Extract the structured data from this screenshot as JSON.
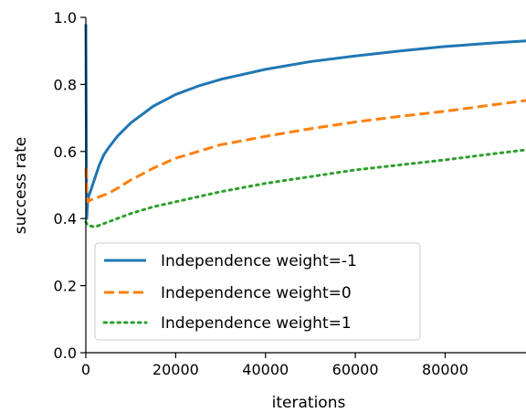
{
  "chart_data": {
    "type": "line",
    "title": "",
    "xlabel": "iterations",
    "ylabel": "success rate",
    "xlim": [
      0,
      98000
    ],
    "ylim": [
      0.0,
      1.0
    ],
    "xticks": [
      0,
      20000,
      40000,
      60000,
      80000
    ],
    "xtick_labels": [
      "0",
      "20000",
      "40000",
      "60000",
      "80000"
    ],
    "yticks": [
      0.0,
      0.2,
      0.4,
      0.6,
      0.8,
      1.0
    ],
    "ytick_labels": [
      "0.0",
      "0.2",
      "0.4",
      "0.6",
      "0.8",
      "1.0"
    ],
    "grid": false,
    "legend_position": "lower-left",
    "series": [
      {
        "name": "Independence weight=-1",
        "color": "#1f77b4",
        "style": "solid",
        "x": [
          0,
          200,
          400,
          700,
          1000,
          1500,
          2000,
          3000,
          4000,
          5000,
          7000,
          10000,
          15000,
          20000,
          25000,
          30000,
          40000,
          50000,
          60000,
          70000,
          80000,
          90000,
          98000
        ],
        "y": [
          0.98,
          0.4,
          0.45,
          0.47,
          0.48,
          0.5,
          0.52,
          0.56,
          0.59,
          0.61,
          0.645,
          0.685,
          0.735,
          0.77,
          0.795,
          0.815,
          0.845,
          0.868,
          0.885,
          0.9,
          0.913,
          0.923,
          0.93
        ]
      },
      {
        "name": "Independence weight=0",
        "color": "#ff7f0e",
        "style": "dashed",
        "x": [
          0,
          200,
          500,
          1000,
          2000,
          3000,
          5000,
          7000,
          10000,
          15000,
          20000,
          25000,
          30000,
          40000,
          50000,
          60000,
          70000,
          80000,
          90000,
          98000
        ],
        "y": [
          0.55,
          0.47,
          0.45,
          0.455,
          0.46,
          0.465,
          0.475,
          0.49,
          0.515,
          0.55,
          0.58,
          0.6,
          0.62,
          0.645,
          0.668,
          0.688,
          0.705,
          0.72,
          0.738,
          0.752
        ]
      },
      {
        "name": "Independence weight=1",
        "color": "#2ca02c",
        "style": "dotted",
        "x": [
          0,
          200,
          500,
          1000,
          2000,
          3000,
          5000,
          7000,
          10000,
          15000,
          20000,
          25000,
          30000,
          40000,
          50000,
          60000,
          70000,
          80000,
          90000,
          98000
        ],
        "y": [
          0.39,
          0.385,
          0.38,
          0.378,
          0.375,
          0.38,
          0.39,
          0.4,
          0.415,
          0.435,
          0.45,
          0.465,
          0.48,
          0.505,
          0.525,
          0.545,
          0.56,
          0.575,
          0.592,
          0.605
        ]
      }
    ]
  }
}
